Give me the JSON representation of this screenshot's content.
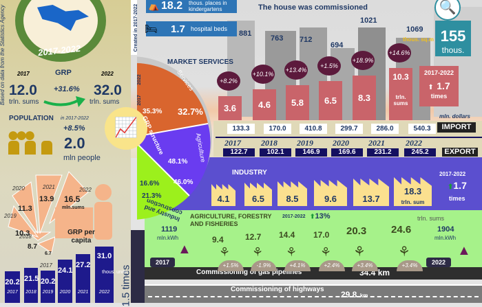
{
  "source_note": "Based on data from  the Statistics Agency",
  "created_note": "Created in 2017-2022",
  "map": {
    "period": "2017-2022"
  },
  "grp": {
    "title": "GRP",
    "year_start": "2017",
    "year_end": "2022",
    "value_start": "12.0",
    "value_end": "32.0",
    "unit": "trln. sums",
    "growth": "+31.6%"
  },
  "population": {
    "title": "POPULATION",
    "period": "in 2017-2022",
    "growth": "+8.5%",
    "value": "2.0",
    "unit": "mln people"
  },
  "grp_per_capita": {
    "title": "GRP per capita",
    "unit": "mln.sums",
    "slices": [
      {
        "year": "2017",
        "value": "6.7"
      },
      {
        "year": "2018",
        "value": "8.7"
      },
      {
        "year": "2019",
        "value": "10.3"
      },
      {
        "year": "2020",
        "value": "11.3"
      },
      {
        "year": "2021",
        "value": "13.9"
      },
      {
        "year": "2022",
        "value": "16.5"
      }
    ]
  },
  "housing_units": {
    "growth": "1.5 times",
    "unit": "thous. units.",
    "bars": [
      {
        "year": "2017",
        "value": "20.2"
      },
      {
        "year": "2018",
        "value": "21.5"
      },
      {
        "year": "2019",
        "value": "20.2"
      },
      {
        "year": "2020",
        "value": "24.1"
      },
      {
        "year": "2021",
        "value": "27.2"
      },
      {
        "year": "2022",
        "value": "31.0"
      }
    ]
  },
  "kindergarten": {
    "value": "18.2",
    "label": "thous. places in kindergartens"
  },
  "hospital": {
    "value": "1.7",
    "label": "hospital beds"
  },
  "houses": {
    "title": "The house was commissioned",
    "unit": "thous. sq.m",
    "values": [
      "881",
      "763",
      "712",
      "694",
      "1021",
      "1069"
    ]
  },
  "jobs": {
    "value": "155",
    "unit": "thous."
  },
  "grp_structure": {
    "label": "GRP structure",
    "year_a": "2022",
    "year_b": "2017",
    "sectors": [
      {
        "name": "Services",
        "p2017": "35.3%",
        "p2022": "32.7%",
        "color": "#d9652e"
      },
      {
        "name": "Agriculture",
        "p2017": "48.1%",
        "p2022": "46.0%",
        "color": "#6a3cf0"
      },
      {
        "name": "Industry and construction",
        "p2017": "16.6%",
        "p2022": "21.3%",
        "color": "#9cf01c"
      }
    ]
  },
  "market_services": {
    "title": "MARKET SERVICES",
    "values": [
      "3.6",
      "4.6",
      "5.8",
      "6.5",
      "8.3",
      "10.3"
    ],
    "unit": "trln. sums",
    "growth": [
      "+8.2%",
      "+10.1%",
      "+13.4%",
      "+1.5%",
      "+18.9%",
      "+14.6%"
    ],
    "summary_period": "2017-2022",
    "summary_value": "1.7",
    "summary_unit": "times"
  },
  "trade": {
    "unit": "mln. dollars",
    "import_label": "IMPORT",
    "export_label": "EXPORT",
    "years": [
      "2017",
      "2018",
      "2019",
      "2020",
      "2021",
      "2022"
    ],
    "import": [
      "133.3",
      "170.0",
      "410.8",
      "299.7",
      "286.0",
      "540.3"
    ],
    "export": [
      "122.7",
      "102.1",
      "146.9",
      "169.6",
      "231.2",
      "245.2"
    ]
  },
  "industry": {
    "title": "INDUSTRY",
    "values": [
      "4.1",
      "6.5",
      "8.5",
      "9.6",
      "13.7",
      "18.3"
    ],
    "unit": "trln. sum",
    "period": "2017-2022",
    "growth": "1.7",
    "growth_unit": "times"
  },
  "agriculture": {
    "title": "AGRICULTURE, FORESTRY AND FISHERIES",
    "period": "2017-2022",
    "growth": "13%",
    "values": [
      "9.4",
      "12.7",
      "14.4",
      "17.0",
      "20.3",
      "24.6"
    ],
    "unit": "trln. sums",
    "changes": [
      "+1.5%",
      "-1.9%",
      "+4.1%",
      "+2.4%",
      "+3.4%",
      "+3.4%"
    ]
  },
  "electricity": {
    "start": "1119",
    "end": "1904",
    "unit": "mln.kWh",
    "year_start": "2017",
    "year_end": "2022"
  },
  "gas": {
    "label": "Commissioning of gas pipelines",
    "value": "34.4 km"
  },
  "highways": {
    "label": "Commissioning of highways",
    "value": "29.8",
    "unit": "km"
  }
}
